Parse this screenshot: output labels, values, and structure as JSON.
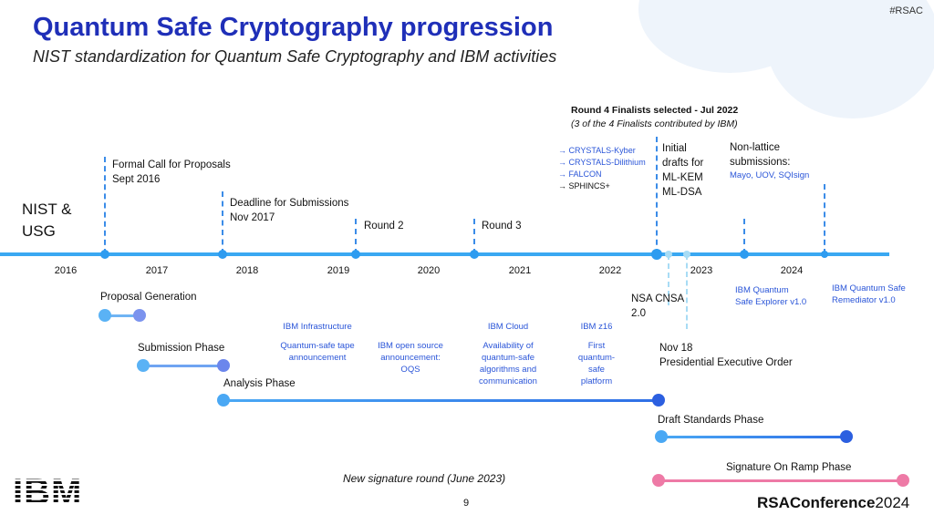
{
  "header": {
    "title": "Quantum Safe Cryptography progression",
    "subtitle": "NIST standardization for Quantum Safe Cryptography and IBM activities",
    "hashtag": "#RSAC"
  },
  "left_label": [
    "NIST &",
    "USG"
  ],
  "years": [
    "2016",
    "2017",
    "2018",
    "2019",
    "2020",
    "2021",
    "2022",
    "2023",
    "2024"
  ],
  "events": {
    "formal_call": [
      "Formal Call for Proposals",
      "Sept 2016"
    ],
    "deadline": [
      "Deadline for Submissions",
      "Nov 2017"
    ],
    "round2": "Round 2",
    "round3": "Round 3",
    "round4_title": "Round 4 Finalists selected - Jul 2022",
    "round4_note": "(3 of the 4 Finalists contributed by IBM)",
    "finalists": [
      "→ CRYSTALS-Kyber",
      "→ CRYSTALS-Dilithium",
      "→ FALCON",
      "→ SPHINCS+"
    ],
    "initial_drafts": [
      "Initial",
      "drafts for",
      "ML-KEM",
      "ML-DSA"
    ],
    "non_lattice": [
      "Non-lattice",
      "submissions:"
    ],
    "non_lattice_list": "Mayo, UOV, SQIsign",
    "nsa": [
      "NSA CNSA",
      "2.0"
    ],
    "executive_order": [
      "Nov 18",
      "Presidential Executive Order"
    ]
  },
  "ibm": {
    "infra_title": "IBM Infrastructure",
    "infra": [
      "Quantum-safe  tape",
      "announcement"
    ],
    "oqs": [
      "IBM open source",
      "announcement:",
      "OQS"
    ],
    "cloud_title": "IBM Cloud",
    "cloud": [
      "Availability of",
      "quantum-safe",
      "algorithms and",
      "communication"
    ],
    "z16_title": "IBM z16",
    "z16": [
      "First",
      "quantum-",
      "safe",
      "platform"
    ],
    "explorer": [
      "IBM Quantum",
      "Safe Explorer v1.0"
    ],
    "remediator": [
      "IBM Quantum Safe",
      "Remediator v1.0"
    ]
  },
  "phases": {
    "proposal": "Proposal Generation",
    "submission": "Submission Phase",
    "analysis": "Analysis Phase",
    "draft": "Draft Standards Phase",
    "signature": "Signature On Ramp Phase"
  },
  "footer": {
    "note": "New signature round (June 2023)",
    "page": "9",
    "conference": "RSAConference",
    "conference_year": "2024",
    "logo": "IBM"
  },
  "colors": {
    "title": "#1f2fb8",
    "timeline": "#3aa8f2",
    "ibm_text": "#2a55d8",
    "signature_phase": "#ee7aa6"
  }
}
